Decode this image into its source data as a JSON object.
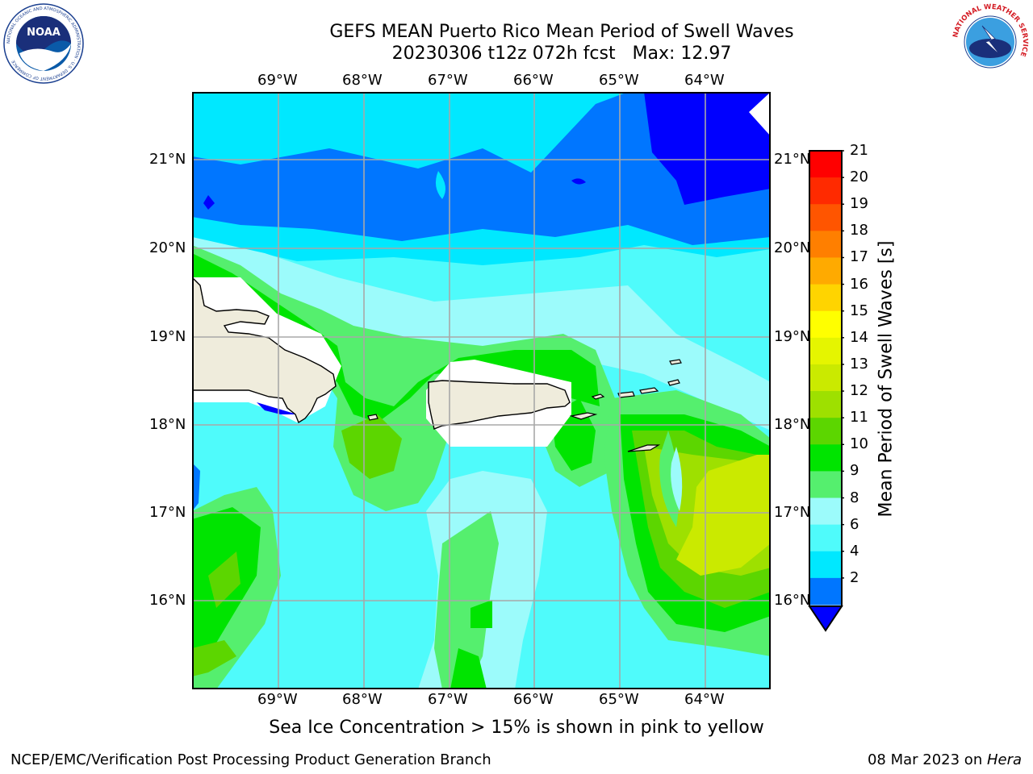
{
  "header": {
    "title_line1": "GEFS MEAN Puerto Rico Mean Period of Swell Waves",
    "title_line2": "20230306 t12z 072h fcst   Max: 12.97"
  },
  "map": {
    "lon_labels": [
      "69°W",
      "68°W",
      "67°W",
      "66°W",
      "65°W",
      "64°W"
    ],
    "lat_labels": [
      "21°N",
      "20°N",
      "19°N",
      "18°N",
      "17°N",
      "16°N"
    ]
  },
  "colorbar": {
    "label": "Mean Period of Swell Waves [s]",
    "ticks": [
      "21",
      "20",
      "19",
      "18",
      "17",
      "16",
      "15",
      "14",
      "13",
      "12",
      "11",
      "10",
      "9",
      "8",
      "6",
      "4",
      "2"
    ],
    "colors": [
      "#ff0000",
      "#ff2a00",
      "#ff5500",
      "#ff7f00",
      "#ffaa00",
      "#ffd400",
      "#ffff00",
      "#e5f500",
      "#caea00",
      "#9ee000",
      "#5cd600",
      "#00e400",
      "#55ef6e",
      "#9cfbfb",
      "#4ffbfb",
      "#00e8ff",
      "#0076ff"
    ],
    "extend_color": "#0000ff"
  },
  "caption": "Sea Ice Concentration > 15% is shown in pink to yellow",
  "footer": {
    "left": "NCEP/EMC/Verification Post Processing Product Generation Branch",
    "right_prefix": "08 Mar 2023 on ",
    "right_host": "Hera"
  },
  "logos": {
    "noaa_text": "NOAA",
    "noaa_ring": "NATIONAL OCEANIC AND ATMOSPHERIC ADMINISTRATION · U.S. DEPARTMENT OF COMMERCE",
    "nws_ring": "NATIONAL WEATHER SERVICE"
  }
}
